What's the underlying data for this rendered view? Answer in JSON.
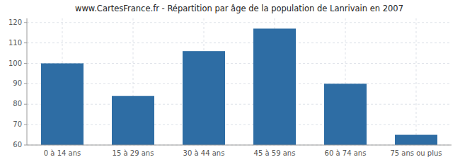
{
  "chart_data": {
    "type": "bar",
    "title": "www.CartesFrance.fr - Répartition par âge de la population de Lanrivain en 2007",
    "categories": [
      "0 à 14 ans",
      "15 à 29 ans",
      "30 à 44 ans",
      "45 à 59 ans",
      "60 à 74 ans",
      "75 ans ou plus"
    ],
    "values": [
      100,
      84,
      106,
      117,
      90,
      65
    ],
    "color": "#2e6da4",
    "ylim": [
      60,
      122
    ],
    "yticks": [
      60,
      70,
      80,
      90,
      100,
      110,
      120
    ],
    "grid": true
  }
}
